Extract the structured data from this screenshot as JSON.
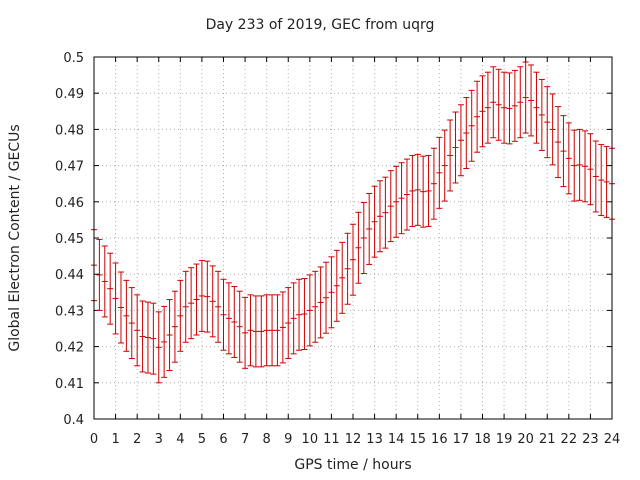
{
  "chart_data": {
    "type": "line",
    "title": "Day 233 of 2019, GEC from uqrg",
    "xlabel": "GPS time / hours",
    "ylabel": "Global Electron Content / GECUs",
    "xlim": [
      0,
      24
    ],
    "ylim": [
      0.4,
      0.5
    ],
    "xticks": [
      "0",
      "1",
      "2",
      "3",
      "4",
      "5",
      "6",
      "7",
      "8",
      "9",
      "10",
      "11",
      "12",
      "13",
      "14",
      "15",
      "16",
      "17",
      "18",
      "19",
      "20",
      "21",
      "22",
      "23",
      "24"
    ],
    "yticks": [
      "0.4",
      "0.41",
      "0.42",
      "0.43",
      "0.44",
      "0.45",
      "0.46",
      "0.47",
      "0.48",
      "0.49",
      "0.5"
    ],
    "grid": true,
    "series": [
      {
        "error_bar_halfwidth": 0.0098,
        "color": "#cc0000",
        "x": [
          0.0,
          0.25,
          0.5,
          0.75,
          1.0,
          1.25,
          1.5,
          1.75,
          2.0,
          2.25,
          2.5,
          2.75,
          3.0,
          3.25,
          3.5,
          3.75,
          4.0,
          4.25,
          4.5,
          4.75,
          5.0,
          5.25,
          5.5,
          5.75,
          6.0,
          6.25,
          6.5,
          6.75,
          7.0,
          7.25,
          7.5,
          7.75,
          8.0,
          8.25,
          8.5,
          8.75,
          9.0,
          9.25,
          9.5,
          9.75,
          10.0,
          10.25,
          10.5,
          10.75,
          11.0,
          11.25,
          11.5,
          11.75,
          12.0,
          12.25,
          12.5,
          12.75,
          13.0,
          13.25,
          13.5,
          13.75,
          14.0,
          14.25,
          14.5,
          14.75,
          15.0,
          15.25,
          15.5,
          15.75,
          16.0,
          16.25,
          16.5,
          16.75,
          17.0,
          17.25,
          17.5,
          17.75,
          18.0,
          18.25,
          18.5,
          18.75,
          19.0,
          19.25,
          19.5,
          19.75,
          20.0,
          20.25,
          20.5,
          20.75,
          21.0,
          21.25,
          21.5,
          21.75,
          22.0,
          22.25,
          22.5,
          22.75,
          23.0,
          23.25,
          23.5,
          23.75,
          24.0
        ],
        "y": [
          0.4425,
          0.4398,
          0.438,
          0.436,
          0.4333,
          0.4308,
          0.4285,
          0.4265,
          0.4245,
          0.4228,
          0.4225,
          0.4222,
          0.4198,
          0.4213,
          0.4232,
          0.4255,
          0.4285,
          0.431,
          0.432,
          0.433,
          0.434,
          0.4338,
          0.4325,
          0.431,
          0.4288,
          0.4278,
          0.4268,
          0.4255,
          0.4238,
          0.4245,
          0.4242,
          0.4242,
          0.4245,
          0.4245,
          0.4245,
          0.4253,
          0.4265,
          0.4278,
          0.4288,
          0.429,
          0.43,
          0.431,
          0.4322,
          0.4335,
          0.435,
          0.4368,
          0.439,
          0.4415,
          0.444,
          0.4473,
          0.45,
          0.4525,
          0.4545,
          0.456,
          0.457,
          0.4588,
          0.46,
          0.461,
          0.462,
          0.463,
          0.4633,
          0.4628,
          0.463,
          0.465,
          0.468,
          0.47,
          0.4728,
          0.475,
          0.477,
          0.479,
          0.481,
          0.4835,
          0.485,
          0.486,
          0.4875,
          0.4868,
          0.486,
          0.4858,
          0.4865,
          0.4875,
          0.4888,
          0.488,
          0.486,
          0.484,
          0.482,
          0.48,
          0.4765,
          0.474,
          0.472,
          0.47,
          0.4702,
          0.4698,
          0.469,
          0.467,
          0.466,
          0.4655,
          0.465
        ]
      }
    ]
  }
}
